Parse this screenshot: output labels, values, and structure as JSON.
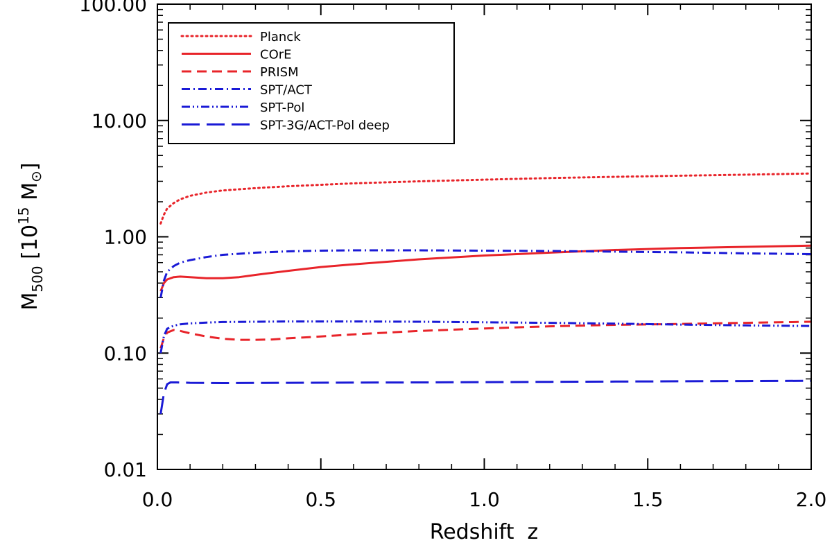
{
  "chart_data": {
    "type": "line",
    "xlabel": "Redshift  z",
    "ylabel": {
      "base": "M",
      "sub": "500",
      "open": "[10",
      "sup": "15",
      "unit": " M",
      "unit_symbol": "⊙",
      "close": "]"
    },
    "x_scale": "linear",
    "y_scale": "log",
    "xlim": [
      0.0,
      2.0
    ],
    "ylim": [
      0.01,
      100
    ],
    "x_ticks": [
      0.0,
      0.5,
      1.0,
      1.5,
      2.0
    ],
    "x_tick_labels": [
      "0.0",
      "0.5",
      "1.0",
      "1.5",
      "2.0"
    ],
    "y_ticks": [
      0.01,
      0.1,
      1,
      10,
      100
    ],
    "y_tick_labels": [
      "0.01",
      "0.10",
      "1.00",
      "10.00",
      "100.00"
    ],
    "grid": false,
    "legend_position": "top-left",
    "series": [
      {
        "name": "Planck",
        "color": "#e8242a",
        "dash": "dotted",
        "x": [
          0.01,
          0.02,
          0.03,
          0.05,
          0.07,
          0.1,
          0.15,
          0.2,
          0.3,
          0.4,
          0.5,
          0.6,
          0.8,
          1.0,
          1.2,
          1.4,
          1.6,
          1.8,
          2.0
        ],
        "y": [
          1.3,
          1.55,
          1.75,
          1.95,
          2.1,
          2.25,
          2.4,
          2.5,
          2.62,
          2.72,
          2.8,
          2.88,
          3.0,
          3.1,
          3.2,
          3.28,
          3.35,
          3.42,
          3.5
        ]
      },
      {
        "name": "COrE",
        "color": "#e8242a",
        "dash": "solid",
        "x": [
          0.01,
          0.02,
          0.03,
          0.05,
          0.07,
          0.1,
          0.15,
          0.2,
          0.25,
          0.3,
          0.4,
          0.5,
          0.6,
          0.8,
          1.0,
          1.2,
          1.4,
          1.6,
          1.8,
          2.0
        ],
        "y": [
          0.34,
          0.4,
          0.43,
          0.45,
          0.455,
          0.45,
          0.44,
          0.44,
          0.45,
          0.47,
          0.51,
          0.55,
          0.58,
          0.64,
          0.69,
          0.73,
          0.77,
          0.8,
          0.82,
          0.84
        ]
      },
      {
        "name": "PRISM",
        "color": "#e8242a",
        "dash": "dashed",
        "x": [
          0.01,
          0.02,
          0.03,
          0.05,
          0.07,
          0.1,
          0.15,
          0.2,
          0.25,
          0.3,
          0.35,
          0.4,
          0.5,
          0.6,
          0.8,
          1.0,
          1.2,
          1.4,
          1.6,
          1.8,
          2.0
        ],
        "y": [
          0.11,
          0.135,
          0.15,
          0.158,
          0.155,
          0.148,
          0.139,
          0.133,
          0.13,
          0.13,
          0.131,
          0.134,
          0.139,
          0.145,
          0.155,
          0.163,
          0.17,
          0.175,
          0.178,
          0.182,
          0.186
        ]
      },
      {
        "name": "SPT/ACT",
        "color": "#1a1ad6",
        "dash": "dashdot",
        "x": [
          0.01,
          0.02,
          0.03,
          0.05,
          0.07,
          0.1,
          0.15,
          0.2,
          0.3,
          0.4,
          0.5,
          0.6,
          0.8,
          1.0,
          1.2,
          1.4,
          1.6,
          1.8,
          2.0
        ],
        "y": [
          0.3,
          0.42,
          0.5,
          0.56,
          0.6,
          0.63,
          0.67,
          0.7,
          0.73,
          0.75,
          0.76,
          0.765,
          0.765,
          0.76,
          0.755,
          0.745,
          0.735,
          0.72,
          0.71
        ]
      },
      {
        "name": "SPT-Pol",
        "color": "#1a1ad6",
        "dash": "dashdotdot",
        "x": [
          0.01,
          0.02,
          0.03,
          0.05,
          0.07,
          0.1,
          0.15,
          0.2,
          0.3,
          0.4,
          0.5,
          0.6,
          0.8,
          1.0,
          1.2,
          1.4,
          1.6,
          1.8,
          2.0
        ],
        "y": [
          0.1,
          0.14,
          0.162,
          0.172,
          0.177,
          0.18,
          0.183,
          0.185,
          0.186,
          0.187,
          0.187,
          0.187,
          0.186,
          0.184,
          0.182,
          0.179,
          0.176,
          0.173,
          0.171
        ]
      },
      {
        "name": "SPT-3G/ACT-Pol deep",
        "color": "#1a1ad6",
        "dash": "longdash",
        "x": [
          0.01,
          0.02,
          0.03,
          0.04,
          0.06,
          0.1,
          0.2,
          0.4,
          0.6,
          0.8,
          1.0,
          1.2,
          1.4,
          1.6,
          1.8,
          2.0
        ],
        "y": [
          0.03,
          0.045,
          0.054,
          0.056,
          0.056,
          0.0555,
          0.0552,
          0.0555,
          0.0558,
          0.056,
          0.0563,
          0.0566,
          0.0569,
          0.0572,
          0.0575,
          0.0578
        ]
      }
    ]
  }
}
